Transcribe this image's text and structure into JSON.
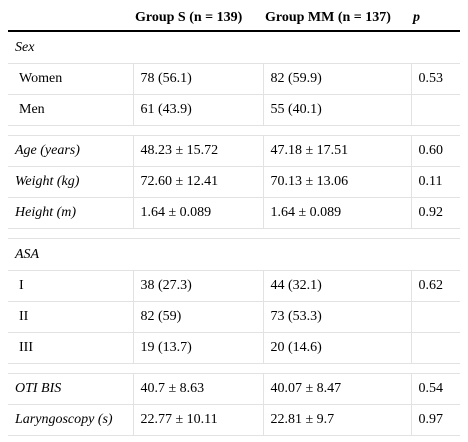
{
  "headers": [
    "",
    "Group S (n = 139)",
    "Group MM (n = 137)",
    "p"
  ],
  "sections": [
    {
      "title": "Sex",
      "rows": [
        {
          "label": "Women",
          "s": "78 (56.1)",
          "mm": "82 (59.9)",
          "p": "0.53"
        },
        {
          "label": "Men",
          "s": "61 (43.9)",
          "mm": "55 (40.1)",
          "p": ""
        }
      ]
    },
    {
      "rows": [
        {
          "label": "Age (years)",
          "s": "48.23 ± 15.72",
          "mm": "47.18 ± 17.51",
          "p": "0.60"
        },
        {
          "label": "Weight (kg)",
          "s": "72.60 ± 12.41",
          "mm": "70.13 ± 13.06",
          "p": "0.11"
        },
        {
          "label": "Height (m)",
          "s": "1.64 ± 0.089",
          "mm": "1.64 ± 0.089",
          "p": "0.92"
        }
      ]
    },
    {
      "title": "ASA",
      "rows": [
        {
          "label": "I",
          "s": "38 (27.3)",
          "mm": "44 (32.1)",
          "p": "0.62"
        },
        {
          "label": "II",
          "s": "82 (59)",
          "mm": "73 (53.3)",
          "p": ""
        },
        {
          "label": "III",
          "s": "19 (13.7)",
          "mm": "20 (14.6)",
          "p": ""
        }
      ]
    },
    {
      "rows": [
        {
          "label": "OTI BIS",
          "s": "40.7 ± 8.63",
          "mm": "40.07 ± 8.47",
          "p": "0.54"
        },
        {
          "label": "Laryngoscopy (s)",
          "s": "22.77 ± 10.11",
          "mm": "22.81 ± 9.7",
          "p": "0.97"
        }
      ]
    }
  ]
}
